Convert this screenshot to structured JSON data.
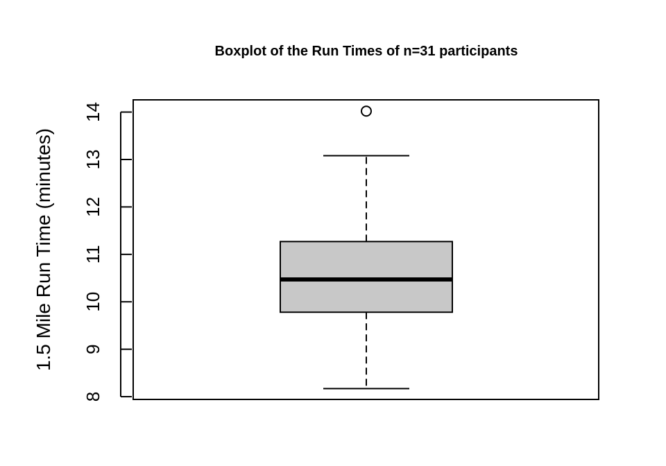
{
  "chart_data": {
    "type": "boxplot",
    "title": "Boxplot of the Run Times of n=31 participants",
    "xlabel": "",
    "ylabel": "1.5 Mile Run Time (minutes)",
    "ylim": [
      8,
      14
    ],
    "yticks": [
      "8",
      "9",
      "10",
      "11",
      "12",
      "13",
      "14"
    ],
    "grid": false,
    "box": {
      "whisker_low": 8.17,
      "q1": 9.78,
      "median": 10.47,
      "q3": 11.27,
      "whisker_high": 13.08,
      "outliers": [
        14.02
      ]
    },
    "colors": {
      "box_fill": "#c8c8c8",
      "line": "#000000"
    }
  }
}
